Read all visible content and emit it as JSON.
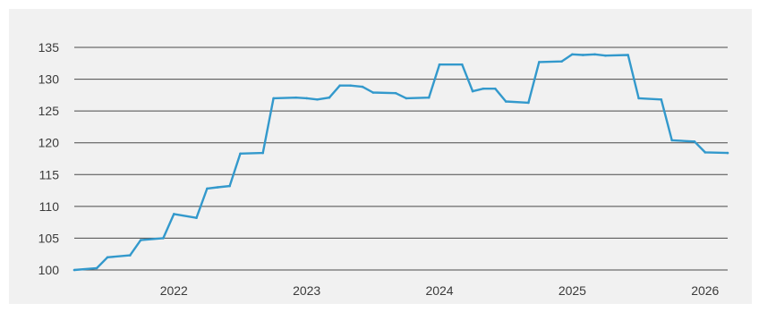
{
  "chart_data": {
    "type": "line",
    "title": "",
    "xlabel": "",
    "ylabel": "",
    "ylim": [
      100,
      135
    ],
    "yticks": [
      100,
      105,
      110,
      115,
      120,
      125,
      130,
      135
    ],
    "xticks": [
      {
        "label": "2022",
        "x": 2022.0
      },
      {
        "label": "2023",
        "x": 2023.0
      },
      {
        "label": "2024",
        "x": 2024.0
      },
      {
        "label": "2025",
        "x": 2025.0
      },
      {
        "label": "2026",
        "x": 2026.0
      }
    ],
    "xlim": [
      2021.25,
      2026.17
    ],
    "grid": "horizontal",
    "line_color": "#3399cc",
    "series": [
      {
        "x": [
          2021.25,
          2021.42,
          2021.5,
          2021.67,
          2021.75,
          2021.92,
          2022.0,
          2022.17,
          2022.25,
          2022.33,
          2022.42,
          2022.5,
          2022.67,
          2022.75,
          2022.92,
          2023.0,
          2023.08,
          2023.17,
          2023.25,
          2023.33,
          2023.42,
          2023.5,
          2023.67,
          2023.75,
          2023.92,
          2024.0,
          2024.17,
          2024.25,
          2024.33,
          2024.42,
          2024.5,
          2024.67,
          2024.75,
          2024.92,
          2025.0,
          2025.08,
          2025.17,
          2025.25,
          2025.42,
          2025.5,
          2025.67,
          2025.75,
          2025.92,
          2026.0,
          2026.17
        ],
        "values": [
          100.0,
          100.3,
          102.0,
          102.3,
          104.7,
          105.0,
          108.8,
          108.2,
          112.8,
          113.0,
          113.2,
          118.3,
          118.4,
          127.0,
          127.1,
          127.0,
          126.8,
          127.1,
          129.0,
          129.0,
          128.8,
          127.9,
          127.8,
          127.0,
          127.1,
          132.3,
          132.3,
          128.1,
          128.5,
          128.5,
          126.5,
          126.3,
          132.7,
          132.8,
          133.9,
          133.8,
          133.9,
          133.7,
          133.8,
          127.0,
          126.8,
          120.4,
          120.2,
          118.5,
          118.4
        ]
      }
    ]
  }
}
